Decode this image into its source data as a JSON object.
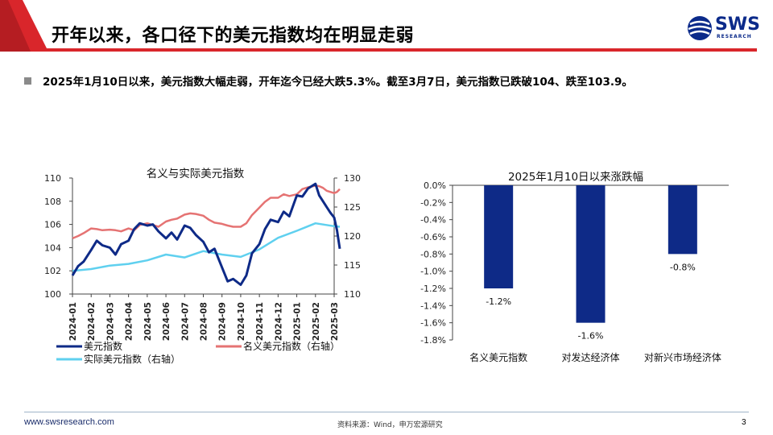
{
  "header": {
    "title": "开年以来，各口径下的美元指数均在明显走弱",
    "logo_text": "SWS",
    "logo_sub": "RESEARCH"
  },
  "bullet": "2025年1月10日以来，美元指数大幅走弱，开年迄今已经大跌5.3%。截至3月7日，美元指数已跌破104、跌至103.9。",
  "footer": {
    "url": "www.swsresearch.com",
    "source": "资料来源：Wind，申万宏源研究",
    "page": "3"
  },
  "colors": {
    "accent_red": "#d9262b",
    "navy": "#0e2a87",
    "light_red": "#e57373",
    "light_blue": "#5fd0ef"
  },
  "chart_data": [
    {
      "type": "line",
      "title": "名义与实际美元指数",
      "x_tick_labels": [
        "2024-01",
        "2024-02",
        "2024-03",
        "2024-04",
        "2024-05",
        "2024-06",
        "2024-07",
        "2024-08",
        "2024-09",
        "2024-10",
        "2024-11",
        "2024-12",
        "2025-01",
        "2025-02",
        "2025-03"
      ],
      "y_left_ticks": [
        "100",
        "102",
        "104",
        "106",
        "108",
        "110"
      ],
      "y_right_ticks": [
        "110",
        "115",
        "120",
        "125",
        "130"
      ],
      "ylim_left": [
        100,
        110
      ],
      "ylim_right": [
        110,
        130
      ],
      "legend_position": "bottom",
      "series": [
        {
          "name": "美元指数",
          "axis": "left",
          "x": [
            0,
            0.3,
            0.6,
            1,
            1.3,
            1.6,
            2,
            2.3,
            2.6,
            3,
            3.3,
            3.6,
            4,
            4.3,
            4.6,
            5,
            5.3,
            5.6,
            6,
            6.3,
            6.6,
            7,
            7.3,
            7.6,
            8,
            8.3,
            8.6,
            9,
            9.3,
            9.6,
            10,
            10.3,
            10.6,
            11,
            11.3,
            11.6,
            12,
            12.3,
            12.6,
            13,
            13.2,
            13.4,
            13.6,
            13.8,
            14,
            14.15,
            14.3
          ],
          "values": [
            101.6,
            102.4,
            102.8,
            103.8,
            104.6,
            104.2,
            104.0,
            103.4,
            104.3,
            104.6,
            105.6,
            106.1,
            105.9,
            106.0,
            105.4,
            104.8,
            105.3,
            104.7,
            105.9,
            105.7,
            105.1,
            104.5,
            103.6,
            103.9,
            102.3,
            101.1,
            101.3,
            100.8,
            101.6,
            103.5,
            104.3,
            105.6,
            106.4,
            106.2,
            107.1,
            106.7,
            108.5,
            108.4,
            109.1,
            109.5,
            108.5,
            108.0,
            107.5,
            107.0,
            106.6,
            105.5,
            103.9
          ]
        },
        {
          "name": "名义美元指数（右轴）",
          "axis": "right",
          "x": [
            0,
            0.3,
            0.6,
            1,
            1.3,
            1.6,
            2,
            2.3,
            2.6,
            3,
            3.3,
            3.6,
            4,
            4.3,
            4.6,
            5,
            5.3,
            5.6,
            6,
            6.3,
            6.6,
            7,
            7.3,
            7.6,
            8,
            8.3,
            8.6,
            9,
            9.3,
            9.6,
            10,
            10.3,
            10.6,
            11,
            11.3,
            11.6,
            12,
            12.3,
            12.6,
            13,
            13.2,
            13.4,
            13.6,
            13.8,
            14,
            14.15,
            14.3
          ],
          "values": [
            119.6,
            120.0,
            120.5,
            121.3,
            121.2,
            121.0,
            121.1,
            121.0,
            120.8,
            121.3,
            121.0,
            121.9,
            122.2,
            121.9,
            121.6,
            122.5,
            122.8,
            123.0,
            123.7,
            123.9,
            123.8,
            123.5,
            122.8,
            122.3,
            122.1,
            121.8,
            121.6,
            121.6,
            122.2,
            123.6,
            124.9,
            125.9,
            126.6,
            126.6,
            127.2,
            126.9,
            127.2,
            128.1,
            128.4,
            128.7,
            128.6,
            128.3,
            127.8,
            127.6,
            127.4,
            127.6,
            128.1
          ]
        },
        {
          "name": "实际美元指数（右轴）",
          "axis": "right",
          "x": [
            0,
            1,
            2,
            3,
            4,
            5,
            6,
            7,
            8,
            9,
            10,
            11,
            12,
            13,
            14,
            14.3
          ],
          "values": [
            114.0,
            114.3,
            114.9,
            115.2,
            115.8,
            116.8,
            116.3,
            117.4,
            116.8,
            116.4,
            117.7,
            119.7,
            120.9,
            122.2,
            121.7,
            121.6
          ]
        }
      ]
    },
    {
      "type": "bar",
      "title": "2025年1月10日以来涨跌幅",
      "categories": [
        "名义美元指数",
        "对发达经济体",
        "对新兴市场经济体"
      ],
      "values": [
        -1.2,
        -1.6,
        -0.8
      ],
      "data_labels": [
        "-1.2%",
        "-1.6%",
        "-0.8%"
      ],
      "y_tick_labels": [
        "0.0%",
        "-0.2%",
        "-0.4%",
        "-0.6%",
        "-0.8%",
        "-1.0%",
        "-1.2%",
        "-1.4%",
        "-1.6%",
        "-1.8%"
      ],
      "ylim": [
        -1.8,
        0.0
      ]
    }
  ]
}
